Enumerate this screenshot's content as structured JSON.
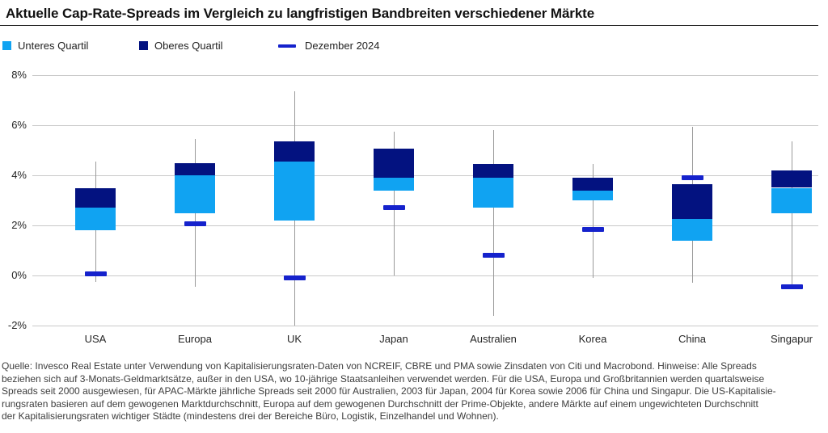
{
  "title": "Aktuelle Cap-Rate-Spreads im Vergleich zu langfristigen Bandbreiten verschiedener Märkte",
  "legend": [
    {
      "label": "Unteres Quartil",
      "swatch": "square",
      "color": "#10a3f2"
    },
    {
      "label": "Oberes Quartil",
      "swatch": "square",
      "color": "#031280"
    },
    {
      "label": "Dezember 2024",
      "swatch": "dash",
      "color": "#1522cc"
    }
  ],
  "colors": {
    "lower_quartile": "#10a3f2",
    "upper_quartile": "#031280",
    "december_marker": "#1522cc",
    "gridline": "#c9c9c9",
    "whisker": "#9a9a9a"
  },
  "chart_data": {
    "type": "box",
    "title": "Aktuelle Cap-Rate-Spreads im Vergleich zu langfristigen Bandbreiten verschiedener Märkte",
    "unit": "%",
    "ylim": [
      -2,
      8
    ],
    "y_tick_step": 2,
    "y_tick_labels": [
      "8%",
      "6%",
      "4%",
      "2%",
      "0%",
      "-2%"
    ],
    "y_tick_values": [
      8,
      6,
      4,
      2,
      0,
      -2
    ],
    "grid": true,
    "legend_position": "top",
    "categories": [
      "USA",
      "Europa",
      "UK",
      "Japan",
      "Australien",
      "Korea",
      "China",
      "Singapur"
    ],
    "markets": [
      {
        "label": "USA",
        "whisker_low": -0.25,
        "lower_quartile_box": [
          1.8,
          2.7
        ],
        "upper_quartile_box": [
          2.7,
          3.5
        ],
        "whisker_high": 4.55,
        "dec_2024": 0.05
      },
      {
        "label": "Europa",
        "whisker_low": -0.45,
        "lower_quartile_box": [
          2.5,
          4.0
        ],
        "upper_quartile_box": [
          4.0,
          4.5
        ],
        "whisker_high": 5.45,
        "dec_2024": 2.05
      },
      {
        "label": "UK",
        "whisker_low": -2.0,
        "lower_quartile_box": [
          2.2,
          4.55
        ],
        "upper_quartile_box": [
          4.55,
          5.35
        ],
        "whisker_high": 7.35,
        "dec_2024": -0.1
      },
      {
        "label": "Japan",
        "whisker_low": 0.0,
        "lower_quartile_box": [
          3.4,
          3.9
        ],
        "upper_quartile_box": [
          3.9,
          5.05
        ],
        "whisker_high": 5.75,
        "dec_2024": 2.7
      },
      {
        "label": "Australien",
        "whisker_low": -1.6,
        "lower_quartile_box": [
          2.7,
          3.9
        ],
        "upper_quartile_box": [
          3.9,
          4.45
        ],
        "whisker_high": 5.8,
        "dec_2024": 0.8
      },
      {
        "label": "Korea",
        "whisker_low": -0.1,
        "lower_quartile_box": [
          3.0,
          3.4
        ],
        "upper_quartile_box": [
          3.4,
          3.9
        ],
        "whisker_high": 4.45,
        "dec_2024": 1.85
      },
      {
        "label": "China",
        "whisker_low": -0.3,
        "lower_quartile_box": [
          1.4,
          2.25
        ],
        "upper_quartile_box": [
          2.25,
          3.65
        ],
        "whisker_high": 5.95,
        "dec_2024": 3.9
      },
      {
        "label": "Singapur",
        "whisker_low": -0.45,
        "lower_quartile_box": [
          2.5,
          3.5
        ],
        "upper_quartile_box": [
          3.5,
          4.2
        ],
        "whisker_high": 5.35,
        "dec_2024": -0.45
      }
    ]
  },
  "footer": {
    "lines": [
      "Quelle: Invesco Real Estate unter Verwendung von Kapitalisierungsraten-Daten von NCREIF, CBRE und PMA sowie Zinsdaten von Citi und Macrobond. Hinweise: Alle Spreads",
      "beziehen sich auf 3-Monats-Geldmarktsätze, außer in den USA, wo 10-jährige Staatsanleihen verwendet werden. Für die USA, Europa und Großbritannien werden quartalsweise",
      "Spreads seit 2000 ausgewiesen, für APAC-Märkte jährliche Spreads seit 2000 für Australien, 2003 für Japan, 2004 für Korea sowie 2006 für China und Singapur. Die US-Kapitalisie-",
      "rungsraten basieren auf dem gewogenen Marktdurchschnitt, Europa auf dem gewogenen Durchschnitt der Prime-Objekte, andere Märkte auf einem ungewichteten Durchschnitt",
      "der Kapitalisierungsraten wichtiger Städte (mindestens drei der Bereiche Büro, Logistik, Einzelhandel und Wohnen)."
    ]
  }
}
